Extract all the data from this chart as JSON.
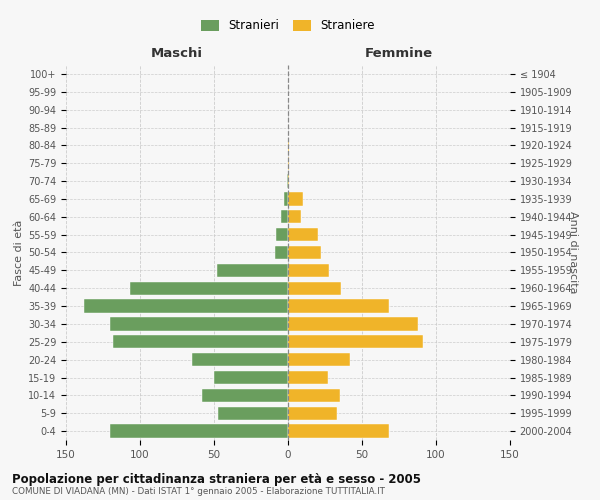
{
  "age_groups": [
    "0-4",
    "5-9",
    "10-14",
    "15-19",
    "20-24",
    "25-29",
    "30-34",
    "35-39",
    "40-44",
    "45-49",
    "50-54",
    "55-59",
    "60-64",
    "65-69",
    "70-74",
    "75-79",
    "80-84",
    "85-89",
    "90-94",
    "95-99",
    "100+"
  ],
  "birth_years": [
    "2000-2004",
    "1995-1999",
    "1990-1994",
    "1985-1989",
    "1980-1984",
    "1975-1979",
    "1970-1974",
    "1965-1969",
    "1960-1964",
    "1955-1959",
    "1950-1954",
    "1945-1949",
    "1940-1944",
    "1935-1939",
    "1930-1934",
    "1925-1929",
    "1920-1924",
    "1915-1919",
    "1910-1914",
    "1905-1909",
    "≤ 1904"
  ],
  "maschi": [
    120,
    47,
    58,
    50,
    65,
    118,
    120,
    138,
    107,
    48,
    9,
    8,
    5,
    3,
    1,
    0,
    0,
    0,
    0,
    0,
    0
  ],
  "femmine": [
    68,
    33,
    35,
    27,
    42,
    91,
    88,
    68,
    36,
    28,
    22,
    20,
    9,
    10,
    1,
    1,
    1,
    0,
    0,
    0,
    0
  ],
  "maschi_color": "#6a9e5e",
  "femmine_color": "#f0b429",
  "background_color": "#f7f7f7",
  "grid_color": "#cccccc",
  "title": "Popolazione per cittadinanza straniera per età e sesso - 2005",
  "subtitle": "COMUNE DI VIADANA (MN) - Dati ISTAT 1° gennaio 2005 - Elaborazione TUTTITALIA.IT",
  "xlabel_left": "Maschi",
  "xlabel_right": "Femmine",
  "ylabel_left": "Fasce di età",
  "ylabel_right": "Anni di nascita",
  "legend_stranieri": "Stranieri",
  "legend_straniere": "Straniere",
  "xlim": 150
}
